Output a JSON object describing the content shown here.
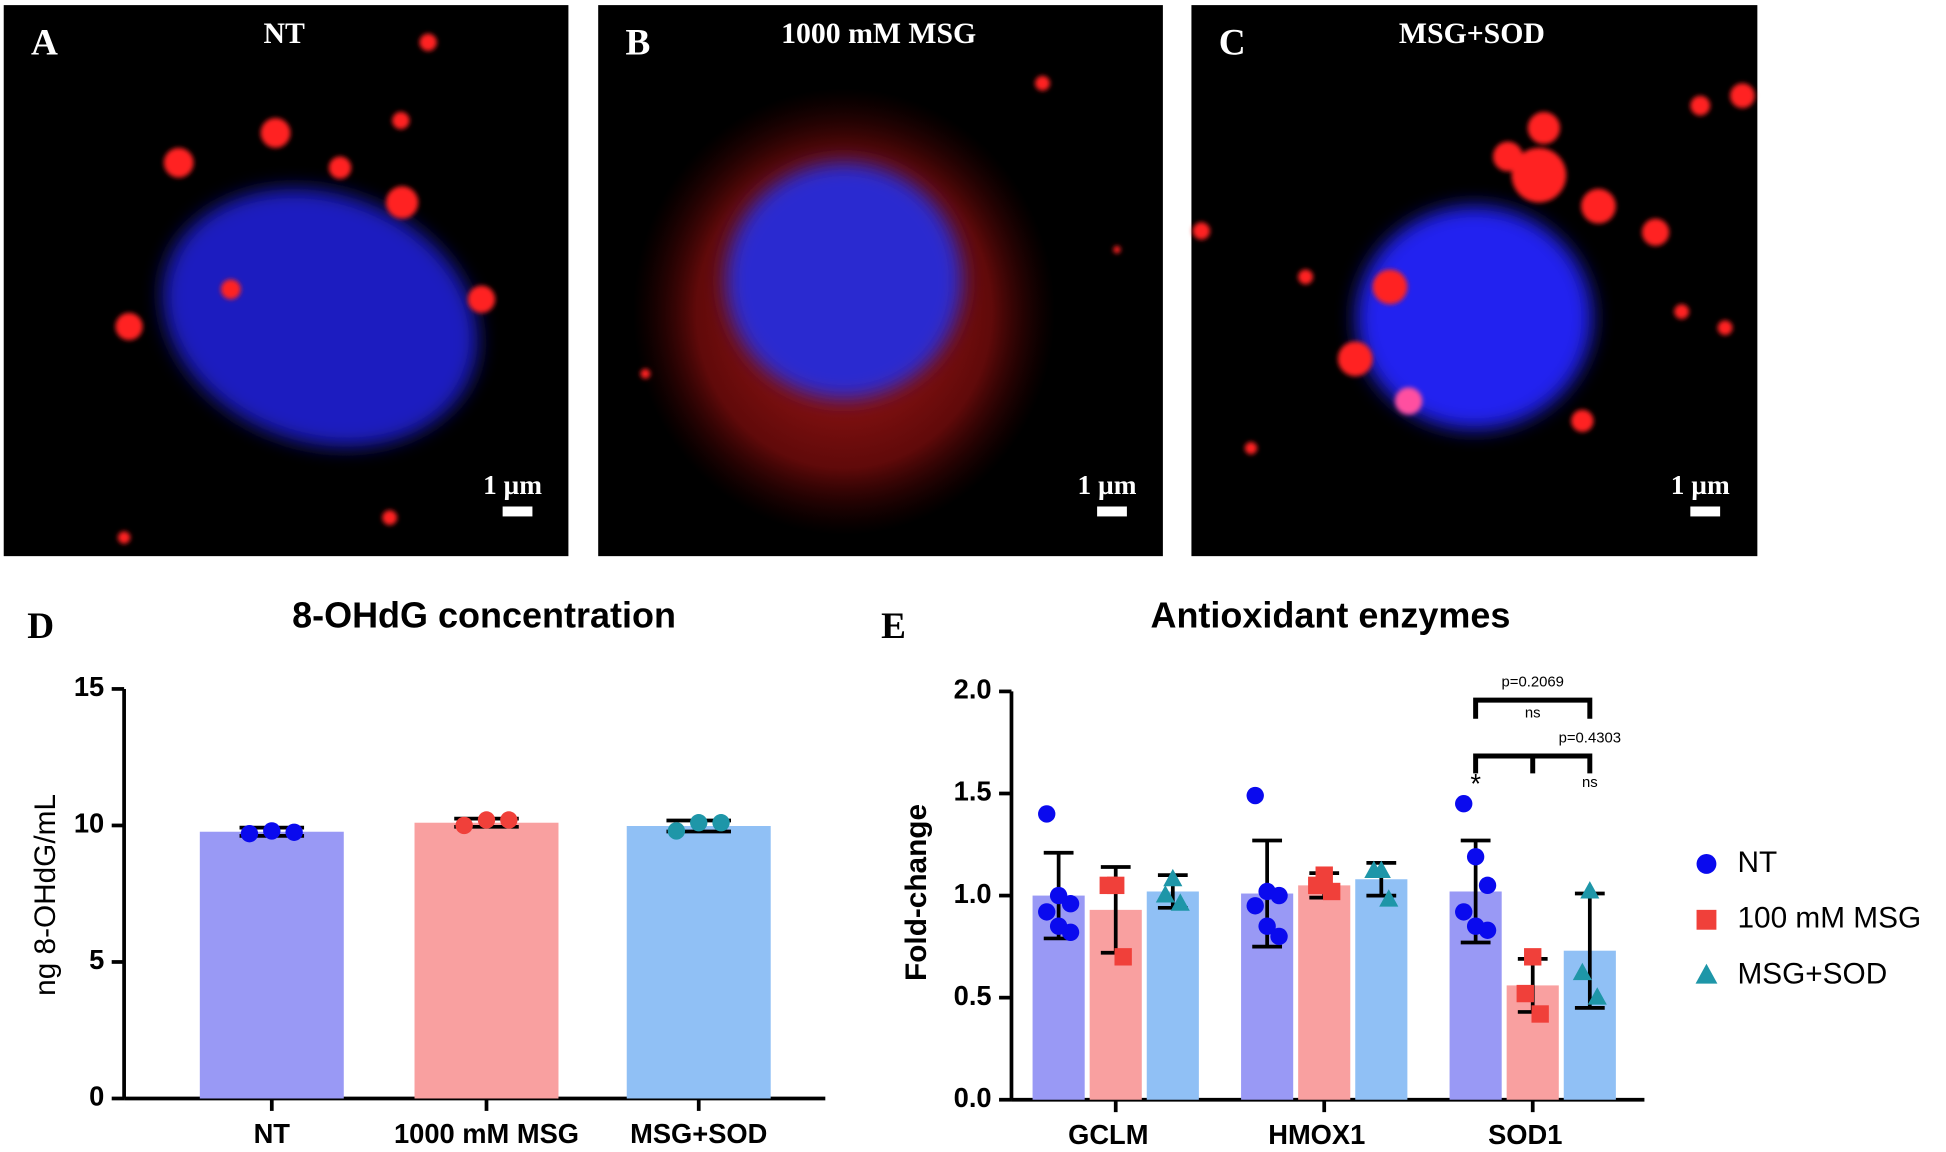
{
  "panels": [
    {
      "letter": "A",
      "title": "NT",
      "scale_bar": "1 µm"
    },
    {
      "letter": "B",
      "title": "1000 mM MSG",
      "scale_bar": "1 µm"
    },
    {
      "letter": "C",
      "title": "MSG+SOD",
      "scale_bar": "1 µm"
    }
  ],
  "chart_data": [
    {
      "type": "bar",
      "letter": "D",
      "title": "8-OHdG concentration",
      "ylabel": "ng 8-OHdG/mL",
      "categories": [
        "NT",
        "1000 mM MSG",
        "MSG+SOD"
      ],
      "values": [
        9.77,
        10.1,
        9.98
      ],
      "errors": [
        0.15,
        0.15,
        0.2
      ],
      "points": [
        [
          9.7,
          9.8,
          9.75
        ],
        [
          10.0,
          10.2,
          10.2
        ],
        [
          9.8,
          10.1,
          10.1
        ]
      ],
      "colors": [
        "#9999f5",
        "#f9a0a0",
        "#90c0f5"
      ],
      "point_colors": [
        "#0a0aee",
        "#f0403a",
        "#1e96a8"
      ],
      "ylim": [
        0,
        15
      ],
      "yticks": [
        0,
        5,
        10,
        15
      ]
    },
    {
      "type": "grouped-bar",
      "letter": "E",
      "title": "Antioxidant enzymes",
      "ylabel": "Fold-change",
      "categories": [
        "GCLM",
        "HMOX1",
        "SOD1"
      ],
      "series": [
        {
          "name": "NT",
          "color": "#9999f5",
          "point_color": "#0a0aee",
          "marker": "circle",
          "values": [
            1.0,
            1.01,
            1.02
          ],
          "errors": [
            0.21,
            0.26,
            0.25
          ],
          "points": [
            [
              1.4,
              1.0,
              0.96,
              0.92,
              0.85,
              0.82
            ],
            [
              1.49,
              1.02,
              1.0,
              0.95,
              0.85,
              0.8
            ],
            [
              1.45,
              1.19,
              1.05,
              0.92,
              0.85,
              0.83
            ]
          ]
        },
        {
          "name": "100 mM MSG",
          "color": "#f9a0a0",
          "point_color": "#f0403a",
          "marker": "square",
          "values": [
            0.93,
            1.05,
            0.56
          ],
          "errors": [
            0.21,
            0.06,
            0.13
          ],
          "points": [
            [
              1.05,
              1.05,
              0.7
            ],
            [
              1.1,
              1.05,
              1.02
            ],
            [
              0.7,
              0.52,
              0.42
            ]
          ]
        },
        {
          "name": "MSG+SOD",
          "color": "#90c0f5",
          "point_color": "#1e96a8",
          "marker": "triangle",
          "values": [
            1.02,
            1.08,
            0.73
          ],
          "errors": [
            0.08,
            0.08,
            0.28
          ],
          "points": [
            [
              1.08,
              1.0,
              0.96
            ],
            [
              1.12,
              1.12,
              0.98
            ],
            [
              1.02,
              0.62,
              0.5
            ]
          ]
        }
      ],
      "annotations": [
        "p=0.2069",
        "ns",
        "p=0.4303",
        "ns",
        "*"
      ],
      "ylim": [
        0,
        2
      ],
      "yticks": [
        {
          "value": 0,
          "label": "0.0"
        },
        0.5,
        {
          "value": 1,
          "label": "1.0"
        },
        1.5,
        {
          "value": 2,
          "label": "2.0"
        }
      ]
    }
  ]
}
